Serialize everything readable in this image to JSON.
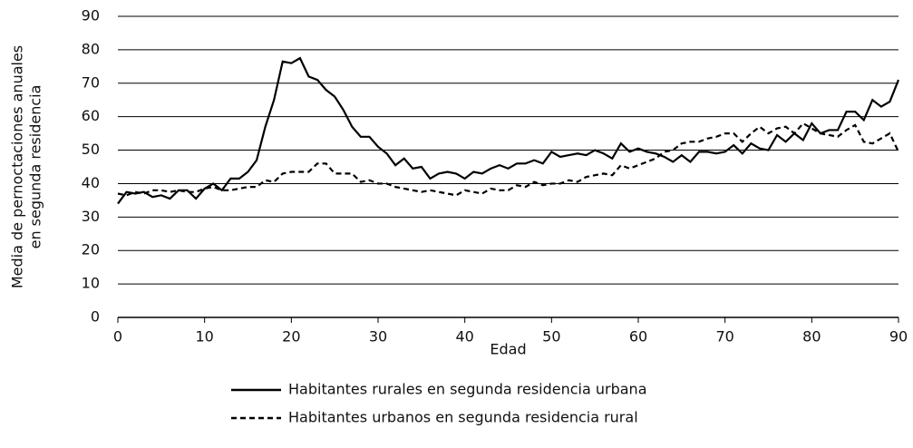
{
  "chart_data": {
    "type": "line",
    "xlabel": "Edad",
    "ylabel": [
      "Media de pernoctaciones anuales",
      "en segunda residencia"
    ],
    "x": [
      0,
      1,
      2,
      3,
      4,
      5,
      6,
      7,
      8,
      9,
      10,
      11,
      12,
      13,
      14,
      15,
      16,
      17,
      18,
      19,
      20,
      21,
      22,
      23,
      24,
      25,
      26,
      27,
      28,
      29,
      30,
      31,
      32,
      33,
      34,
      35,
      36,
      37,
      38,
      39,
      40,
      41,
      42,
      43,
      44,
      45,
      46,
      47,
      48,
      49,
      50,
      51,
      52,
      53,
      54,
      55,
      56,
      57,
      58,
      59,
      60,
      61,
      62,
      63,
      64,
      65,
      66,
      67,
      68,
      69,
      70,
      71,
      72,
      73,
      74,
      75,
      76,
      77,
      78,
      79,
      80,
      81,
      82,
      83,
      84,
      85,
      86,
      87,
      88,
      89,
      90
    ],
    "series": [
      {
        "name": "Habitantes rurales en segunda residencia urbana",
        "color": "#000000",
        "dash": "solid",
        "values": [
          34,
          37.5,
          37,
          37.5,
          36,
          36.5,
          35.5,
          38,
          38,
          35.5,
          38.5,
          40,
          38,
          41.5,
          41.5,
          43.5,
          47,
          57,
          65,
          76.5,
          76,
          77.5,
          72,
          71,
          68,
          66,
          62,
          57,
          54,
          54,
          51,
          49,
          45.5,
          47.5,
          44.5,
          45,
          41.5,
          43,
          43.5,
          43,
          41.5,
          43.5,
          43,
          44.5,
          45.5,
          44.5,
          46,
          46,
          47,
          46,
          49.5,
          48,
          48.5,
          49,
          48.5,
          50,
          49,
          47.5,
          52,
          49.5,
          50.5,
          49.5,
          49,
          48,
          46.5,
          48.5,
          46.5,
          49.5,
          49.5,
          49,
          49.5,
          51.5,
          49,
          52,
          50.5,
          50,
          54.5,
          52.5,
          55,
          53,
          58,
          55,
          56,
          56,
          61.5,
          61.5,
          59,
          65,
          63,
          64.5,
          71
        ]
      },
      {
        "name": "Habitantes urbanos en segunda residencia rural",
        "color": "#000000",
        "dash": "dashed",
        "values": [
          37,
          36.5,
          37.5,
          37,
          38,
          38,
          37.5,
          38,
          37.5,
          37.5,
          38.5,
          39,
          38,
          38,
          38.5,
          39,
          39,
          41,
          40.5,
          43,
          43.5,
          43.5,
          43.5,
          46,
          46,
          43,
          43,
          43,
          40.5,
          41,
          40,
          40,
          39,
          38.5,
          38,
          37.5,
          38,
          37.5,
          37,
          36.5,
          38,
          37.5,
          37,
          38.5,
          38,
          38,
          39.5,
          39,
          40.5,
          39.5,
          40,
          40,
          41,
          40.5,
          42,
          42.5,
          43,
          42.5,
          45.5,
          44.5,
          45.5,
          46.5,
          47.5,
          49.5,
          50,
          52,
          52.5,
          52.5,
          53.5,
          54,
          55,
          55,
          52.5,
          55,
          57,
          55,
          56.5,
          57,
          55,
          58,
          56.5,
          55,
          54.5,
          54,
          56,
          57.5,
          52.5,
          52,
          53.5,
          55,
          49.5
        ]
      }
    ],
    "xlim": [
      0,
      90
    ],
    "xticks": [
      0,
      10,
      20,
      30,
      40,
      50,
      60,
      70,
      80,
      90
    ],
    "ylim": [
      0,
      90
    ],
    "yticks": [
      0,
      10,
      20,
      30,
      40,
      50,
      60,
      70,
      80,
      90
    ],
    "grid": true,
    "legend": "bottom"
  }
}
